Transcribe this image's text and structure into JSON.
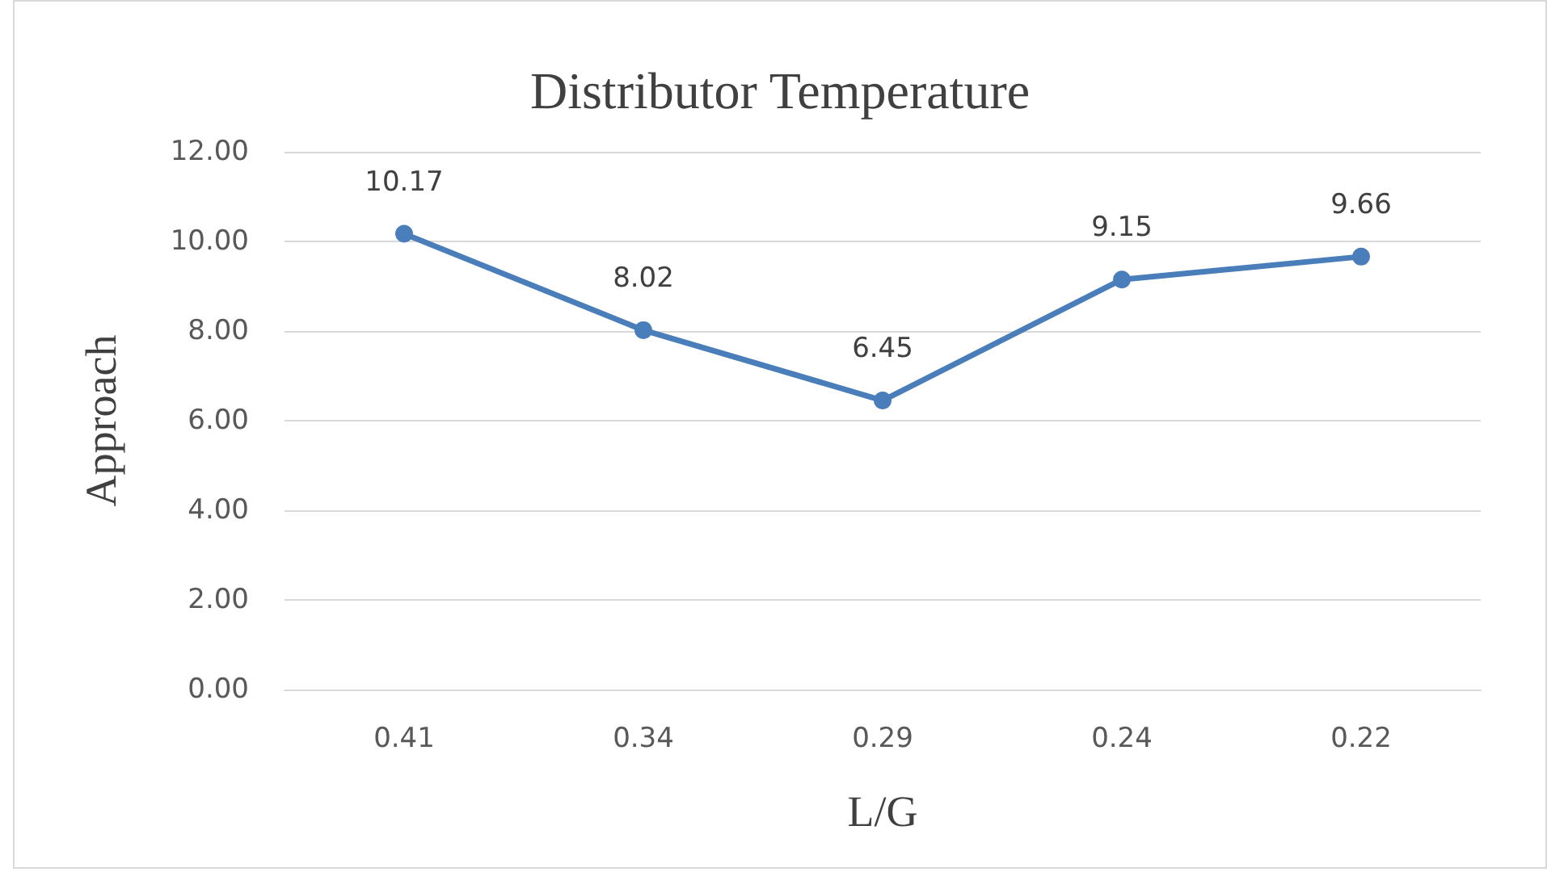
{
  "chart_data": {
    "type": "line",
    "title": "Distributor Temperature",
    "xlabel": "L/G",
    "ylabel": "Approach",
    "categories": [
      "0.41",
      "0.34",
      "0.29",
      "0.24",
      "0.22"
    ],
    "series": [
      {
        "color": "#4a7ebb",
        "values": [
          10.17,
          8.02,
          6.45,
          9.15,
          9.66
        ]
      }
    ],
    "ylim": [
      0,
      12
    ],
    "yticks": [
      {
        "value": 0,
        "label": "0.00"
      },
      {
        "value": 2,
        "label": "2.00"
      },
      {
        "value": 4,
        "label": "4.00"
      },
      {
        "value": 6,
        "label": "6.00"
      },
      {
        "value": 8,
        "label": "8.00"
      },
      {
        "value": 10,
        "label": "10.00"
      },
      {
        "value": 12,
        "label": "12.00"
      }
    ],
    "grid": "y",
    "marker": "circle",
    "line_style": "solid",
    "data_labels": true
  }
}
